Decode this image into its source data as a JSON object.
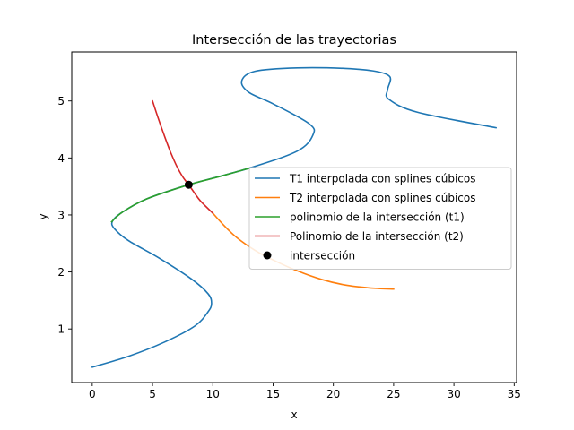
{
  "chart_data": {
    "type": "line",
    "title": "Intersección de las trayectorias",
    "xlabel": "x",
    "ylabel": "y",
    "xlim": [
      -1.7,
      35.2
    ],
    "ylim": [
      0.06,
      5.86
    ],
    "xticks": [
      0,
      5,
      10,
      15,
      20,
      25,
      30,
      35
    ],
    "yticks": [
      1,
      2,
      3,
      4,
      5
    ],
    "grid": false,
    "legend_position": "center-right",
    "series": [
      {
        "name": "T1 interpolada con splines cúbicos",
        "color": "#1f77b4",
        "points": [
          [
            0,
            0.33
          ],
          [
            3,
            0.52
          ],
          [
            6,
            0.77
          ],
          [
            8.5,
            1.05
          ],
          [
            9.6,
            1.3
          ],
          [
            9.9,
            1.45
          ],
          [
            9.6,
            1.62
          ],
          [
            8.2,
            1.88
          ],
          [
            5.5,
            2.25
          ],
          [
            3,
            2.55
          ],
          [
            1.8,
            2.77
          ],
          [
            1.7,
            2.9
          ],
          [
            2.5,
            3.05
          ],
          [
            4.5,
            3.28
          ],
          [
            8,
            3.53
          ],
          [
            13,
            3.82
          ],
          [
            17,
            4.12
          ],
          [
            18.3,
            4.4
          ],
          [
            18,
            4.6
          ],
          [
            15,
            4.95
          ],
          [
            13,
            5.15
          ],
          [
            12.4,
            5.35
          ],
          [
            13.5,
            5.52
          ],
          [
            17,
            5.58
          ],
          [
            21,
            5.57
          ],
          [
            23.5,
            5.52
          ],
          [
            24.7,
            5.42
          ],
          [
            24.5,
            5.2
          ],
          [
            24.6,
            5.03
          ],
          [
            27,
            4.8
          ],
          [
            33.5,
            4.53
          ]
        ]
      },
      {
        "name": "T2 interpolada con splines cúbicos",
        "color": "#ff7f0e",
        "points": [
          [
            10,
            3.03
          ],
          [
            11,
            2.8
          ],
          [
            12,
            2.6
          ],
          [
            13.5,
            2.38
          ],
          [
            15,
            2.21
          ],
          [
            17,
            2.02
          ],
          [
            19,
            1.87
          ],
          [
            21,
            1.77
          ],
          [
            23,
            1.72
          ],
          [
            25,
            1.7
          ]
        ]
      },
      {
        "name": "polinomio de la intersección (t1)",
        "color": "#2ca02c",
        "points": [
          [
            1.6,
            2.88
          ],
          [
            2.5,
            3.05
          ],
          [
            4.5,
            3.28
          ],
          [
            8,
            3.53
          ],
          [
            10.5,
            3.67
          ],
          [
            13,
            3.82
          ]
        ]
      },
      {
        "name": "Polinomio de la intersección (t2)",
        "color": "#d62728",
        "points": [
          [
            5,
            5
          ],
          [
            5.5,
            4.68
          ],
          [
            6,
            4.38
          ],
          [
            6.5,
            4.1
          ],
          [
            7,
            3.86
          ],
          [
            7.5,
            3.67
          ],
          [
            8,
            3.53
          ],
          [
            8.5,
            3.38
          ],
          [
            9,
            3.24
          ],
          [
            10,
            3.03
          ]
        ]
      },
      {
        "name": "intersección",
        "color": "#000000",
        "kind": "scatter",
        "points": [
          [
            8,
            3.53
          ]
        ]
      }
    ]
  }
}
